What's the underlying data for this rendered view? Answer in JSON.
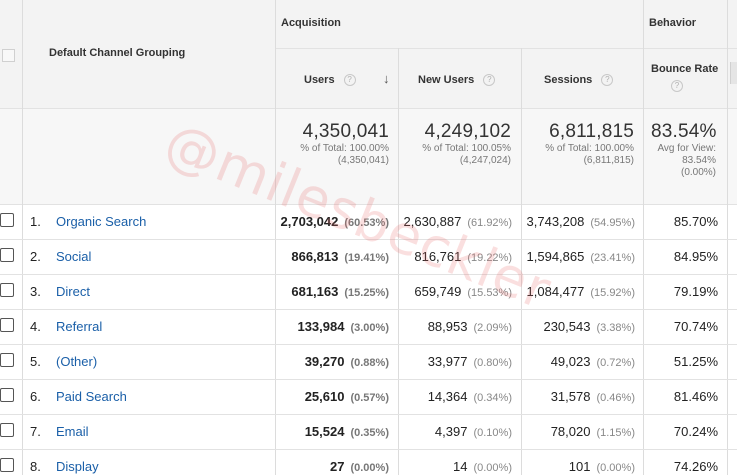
{
  "header": {
    "dimension_label": "Default Channel Grouping",
    "group_acquisition": "Acquisition",
    "group_behavior": "Behavior",
    "col_users": "Users",
    "col_new_users": "New Users",
    "col_sessions": "Sessions",
    "col_bounce_rate": "Bounce Rate",
    "help_glyph": "?",
    "sort_glyph": "↓"
  },
  "totals": {
    "users": {
      "value": "4,350,041",
      "line1": "% of Total: 100.00%",
      "line2": "(4,350,041)"
    },
    "new_users": {
      "value": "4,249,102",
      "line1": "% of Total: 100.05%",
      "line2": "(4,247,024)"
    },
    "sessions": {
      "value": "6,811,815",
      "line1": "% of Total: 100.00%",
      "line2": "(6,811,815)"
    },
    "bounce_rate": {
      "value": "83.54%",
      "line1": "Avg for View:",
      "line2": "83.54%",
      "line3": "(0.00%)"
    }
  },
  "rows": [
    {
      "index": "1.",
      "channel": "Organic Search",
      "users": "2,703,042",
      "users_pct": "(60.53%)",
      "new_users": "2,630,887",
      "new_users_pct": "(61.92%)",
      "sessions": "3,743,208",
      "sessions_pct": "(54.95%)",
      "bounce_rate": "85.70%"
    },
    {
      "index": "2.",
      "channel": "Social",
      "users": "866,813",
      "users_pct": "(19.41%)",
      "new_users": "816,761",
      "new_users_pct": "(19.22%)",
      "sessions": "1,594,865",
      "sessions_pct": "(23.41%)",
      "bounce_rate": "84.95%"
    },
    {
      "index": "3.",
      "channel": "Direct",
      "users": "681,163",
      "users_pct": "(15.25%)",
      "new_users": "659,749",
      "new_users_pct": "(15.53%)",
      "sessions": "1,084,477",
      "sessions_pct": "(15.92%)",
      "bounce_rate": "79.19%"
    },
    {
      "index": "4.",
      "channel": "Referral",
      "users": "133,984",
      "users_pct": "(3.00%)",
      "new_users": "88,953",
      "new_users_pct": "(2.09%)",
      "sessions": "230,543",
      "sessions_pct": "(3.38%)",
      "bounce_rate": "70.74%"
    },
    {
      "index": "5.",
      "channel": "(Other)",
      "users": "39,270",
      "users_pct": "(0.88%)",
      "new_users": "33,977",
      "new_users_pct": "(0.80%)",
      "sessions": "49,023",
      "sessions_pct": "(0.72%)",
      "bounce_rate": "51.25%"
    },
    {
      "index": "6.",
      "channel": "Paid Search",
      "users": "25,610",
      "users_pct": "(0.57%)",
      "new_users": "14,364",
      "new_users_pct": "(0.34%)",
      "sessions": "31,578",
      "sessions_pct": "(0.46%)",
      "bounce_rate": "81.46%"
    },
    {
      "index": "7.",
      "channel": "Email",
      "users": "15,524",
      "users_pct": "(0.35%)",
      "new_users": "4,397",
      "new_users_pct": "(0.10%)",
      "sessions": "78,020",
      "sessions_pct": "(1.15%)",
      "bounce_rate": "70.24%"
    },
    {
      "index": "8.",
      "channel": "Display",
      "users": "27",
      "users_pct": "(0.00%)",
      "new_users": "14",
      "new_users_pct": "(0.00%)",
      "sessions": "101",
      "sessions_pct": "(0.00%)",
      "bounce_rate": "74.26%"
    }
  ],
  "watermark": "@milesbeckler",
  "colors": {
    "link": "#1a5fa8",
    "header_bg": "#f3f3f3",
    "watermark": "#e66e6e"
  }
}
